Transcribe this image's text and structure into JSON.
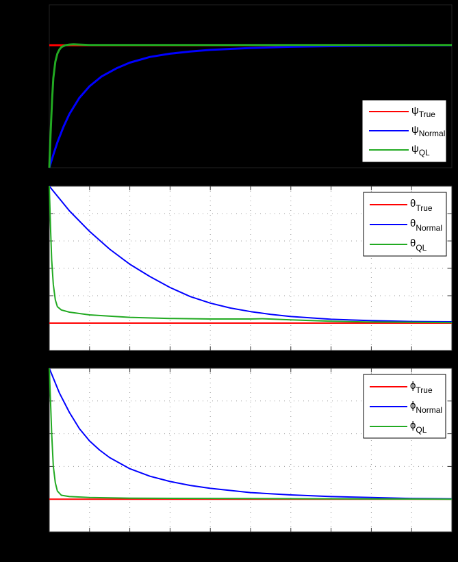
{
  "figure": {
    "background": "#000000",
    "colors": {
      "true": "#ff0000",
      "normal": "#0000ff",
      "ql": "#22aa22"
    }
  },
  "chart_data": [
    {
      "type": "line",
      "title": "",
      "xlabel": "",
      "ylabel": "",
      "grid": false,
      "axes_background": "#000000",
      "xlim": [
        0,
        10
      ],
      "ylim": [
        0,
        1
      ],
      "note": "tick labels not visible; coordinates normalized (x in grid units 0-10, y as fraction of axis height)",
      "legend": {
        "position": "lower right",
        "entries": [
          {
            "symbol": "ψ",
            "sub": "True"
          },
          {
            "symbol": "ψ",
            "sub": "Normal"
          },
          {
            "symbol": "ψ",
            "sub": "QL"
          }
        ]
      },
      "series": [
        {
          "name": "ψ_True",
          "color": "#ff0000",
          "x": [
            0,
            10
          ],
          "y": [
            0.752,
            0.752
          ]
        },
        {
          "name": "ψ_Normal",
          "color": "#0000ff",
          "x": [
            0,
            0.1,
            0.2,
            0.35,
            0.5,
            0.75,
            1.0,
            1.3,
            1.67,
            2.0,
            2.5,
            3.0,
            3.5,
            4.0,
            5.0,
            6.0,
            7.0,
            8.0,
            9.0,
            10.0
          ],
          "y": [
            0.0,
            0.08,
            0.155,
            0.25,
            0.33,
            0.43,
            0.5,
            0.56,
            0.61,
            0.645,
            0.68,
            0.7,
            0.713,
            0.723,
            0.735,
            0.742,
            0.746,
            0.749,
            0.751,
            0.752
          ]
        },
        {
          "name": "ψ_QL",
          "color": "#22aa22",
          "x": [
            0,
            0.03,
            0.07,
            0.1,
            0.15,
            0.2,
            0.25,
            0.3,
            0.4,
            0.5,
            0.6,
            0.8,
            1.0,
            10.0
          ],
          "y": [
            0.0,
            0.2,
            0.42,
            0.55,
            0.65,
            0.7,
            0.725,
            0.74,
            0.752,
            0.756,
            0.757,
            0.755,
            0.753,
            0.753
          ]
        }
      ]
    },
    {
      "type": "line",
      "title": "",
      "xlabel": "",
      "ylabel": "",
      "grid": true,
      "axes_background": "#ffffff",
      "xlim": [
        0,
        10
      ],
      "ylim": [
        0,
        6
      ],
      "note": "tick labels not visible; y in grid units (6 divisions)",
      "legend": {
        "position": "upper right",
        "entries": [
          {
            "symbol": "θ",
            "sub": "True"
          },
          {
            "symbol": "θ",
            "sub": "Normal"
          },
          {
            "symbol": "θ",
            "sub": "QL"
          }
        ]
      },
      "series": [
        {
          "name": "θ_True",
          "color": "#ff0000",
          "x": [
            0,
            10
          ],
          "y": [
            1.0,
            1.0
          ]
        },
        {
          "name": "θ_Normal",
          "color": "#0000ff",
          "x": [
            0,
            0.5,
            1.0,
            1.5,
            2.0,
            2.5,
            3.0,
            3.5,
            4.0,
            4.5,
            5.0,
            5.5,
            6.0,
            7.0,
            8.0,
            9.0,
            10.0
          ],
          "y": [
            6.0,
            5.1,
            4.35,
            3.7,
            3.15,
            2.7,
            2.3,
            1.97,
            1.73,
            1.55,
            1.42,
            1.32,
            1.24,
            1.14,
            1.09,
            1.06,
            1.05
          ]
        },
        {
          "name": "θ_QL",
          "color": "#22aa22",
          "x": [
            0,
            0.03,
            0.06,
            0.1,
            0.15,
            0.2,
            0.3,
            0.5,
            1.0,
            2.0,
            3.0,
            4.0,
            5.0,
            5.3,
            6.0,
            7.0,
            8.0,
            9.0,
            10.0
          ],
          "y": [
            6.0,
            4.5,
            3.3,
            2.4,
            1.85,
            1.6,
            1.48,
            1.4,
            1.3,
            1.21,
            1.17,
            1.15,
            1.15,
            1.16,
            1.12,
            1.07,
            1.04,
            1.03,
            1.02
          ]
        }
      ]
    },
    {
      "type": "line",
      "title": "",
      "xlabel": "",
      "ylabel": "",
      "grid": true,
      "axes_background": "#ffffff",
      "xlim": [
        0,
        10
      ],
      "ylim": [
        0,
        5
      ],
      "note": "tick labels not visible; y in grid units (5 divisions)",
      "legend": {
        "position": "upper right",
        "entries": [
          {
            "symbol": "ϕ",
            "sub": "True"
          },
          {
            "symbol": "ϕ",
            "sub": "Normal"
          },
          {
            "symbol": "ϕ",
            "sub": "QL"
          }
        ]
      },
      "series": [
        {
          "name": "ϕ_True",
          "color": "#ff0000",
          "x": [
            0,
            10
          ],
          "y": [
            1.0,
            1.0
          ]
        },
        {
          "name": "ϕ_Normal",
          "color": "#0000ff",
          "x": [
            0,
            0.25,
            0.5,
            0.75,
            1.0,
            1.25,
            1.5,
            2.0,
            2.5,
            3.0,
            3.5,
            4.0,
            5.0,
            6.0,
            7.0,
            8.0,
            9.0,
            10.0
          ],
          "y": [
            5.0,
            4.25,
            3.65,
            3.15,
            2.78,
            2.5,
            2.27,
            1.93,
            1.7,
            1.54,
            1.42,
            1.33,
            1.2,
            1.13,
            1.08,
            1.05,
            1.02,
            1.01
          ]
        },
        {
          "name": "ϕ_QL",
          "color": "#22aa22",
          "x": [
            0,
            0.03,
            0.06,
            0.1,
            0.15,
            0.2,
            0.3,
            0.5,
            1.0,
            2.0,
            10.0
          ],
          "y": [
            5.0,
            4.0,
            3.0,
            2.0,
            1.5,
            1.25,
            1.12,
            1.08,
            1.05,
            1.03,
            1.0
          ]
        }
      ]
    }
  ]
}
